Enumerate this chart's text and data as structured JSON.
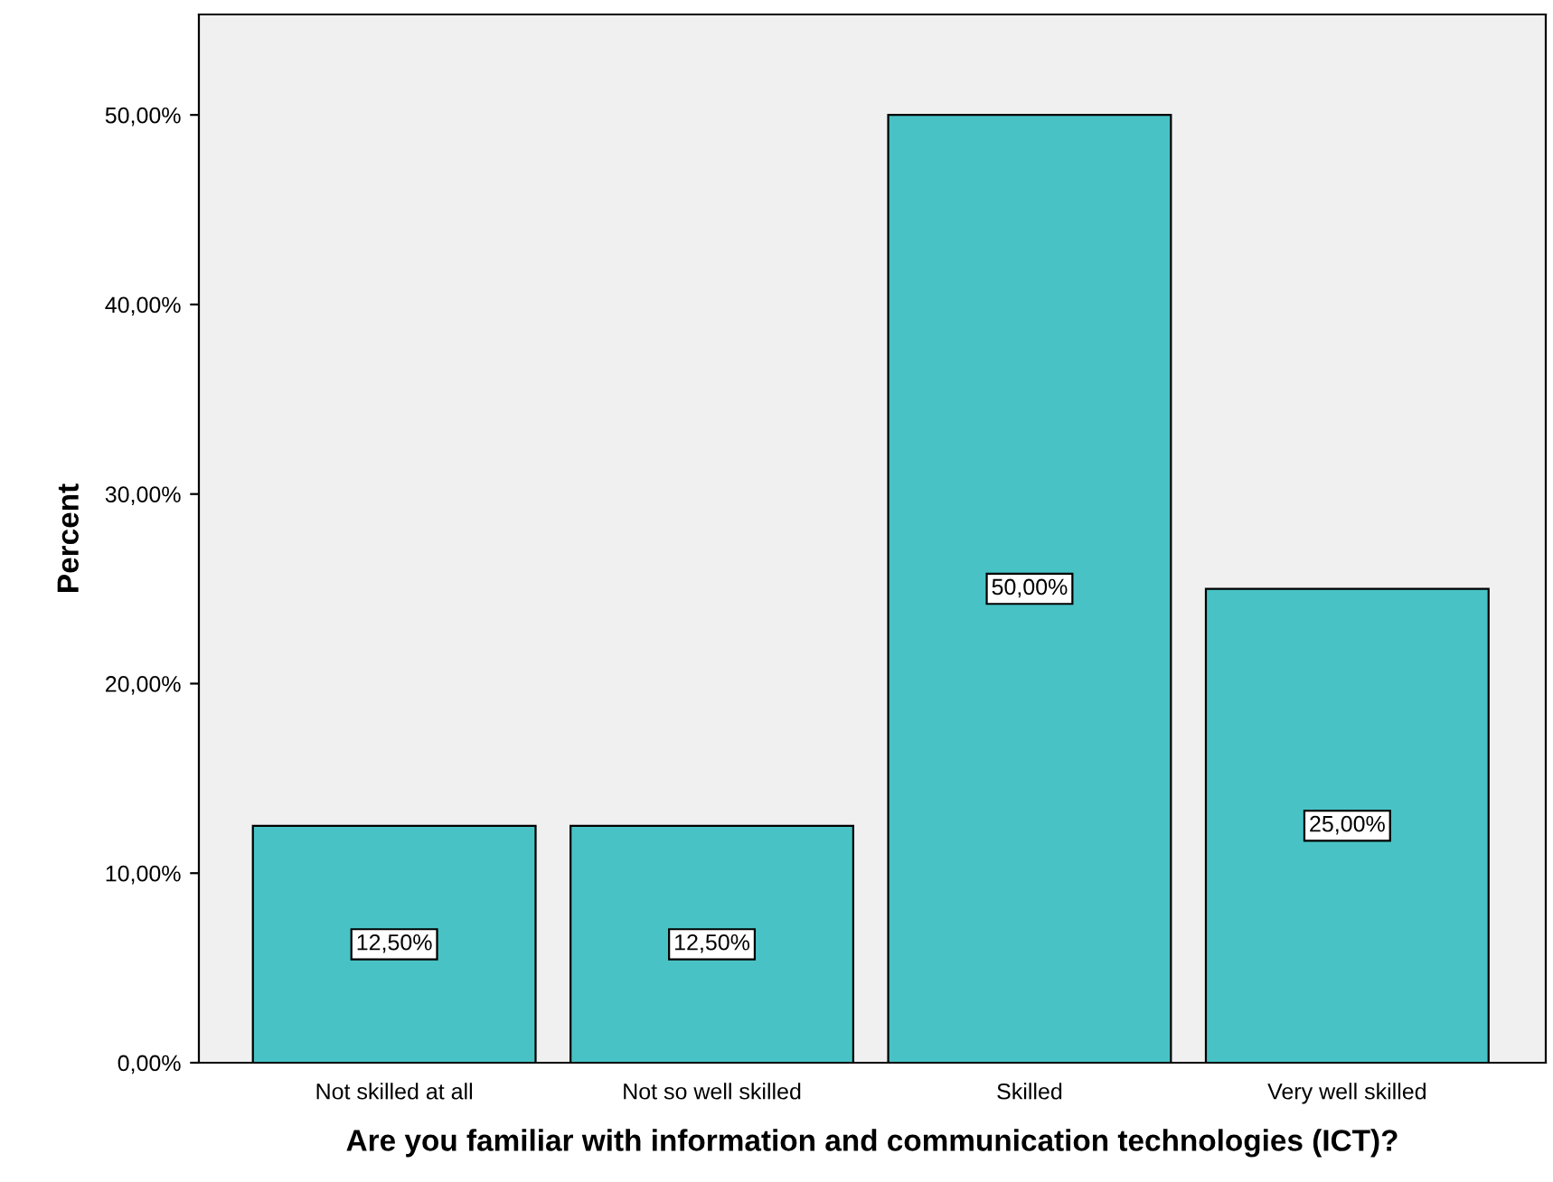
{
  "chart_data": {
    "type": "bar",
    "xlabel": "Are you familiar with information and communication technologies (ICT)?",
    "ylabel": "Percent",
    "categories": [
      "Not skilled at all",
      "Not so well skilled",
      "Skilled",
      "Very well skilled"
    ],
    "values": [
      12.5,
      12.5,
      50,
      25
    ],
    "value_labels": [
      "12,50%",
      "12,50%",
      "50,00%",
      "25,00%"
    ],
    "color": "#48c2c5",
    "ylim": [
      0,
      55.3
    ],
    "yticks": [
      {
        "value": 0,
        "label": "0,00%"
      },
      {
        "value": 10,
        "label": "10,00%"
      },
      {
        "value": 20,
        "label": "20,00%"
      },
      {
        "value": 30,
        "label": "30,00%"
      },
      {
        "value": 40,
        "label": "40,00%"
      },
      {
        "value": 50,
        "label": "50,00%"
      }
    ],
    "grid": false
  }
}
